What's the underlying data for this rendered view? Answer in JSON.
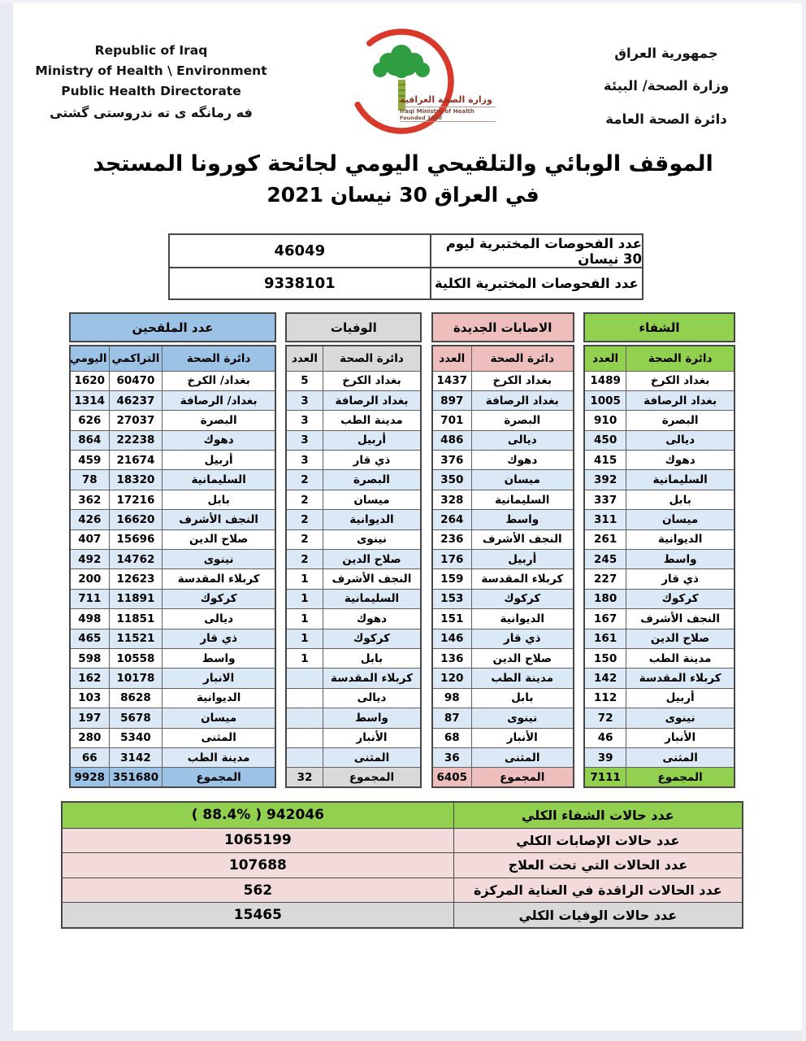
{
  "header": {
    "english_lines": [
      "Republic of Iraq",
      "Ministry of Health \\ Environment",
      "Public Health Directorate"
    ],
    "kurdish_line": "فه رمانگه ی ته ندروستی گشتی",
    "arabic_lines": [
      "جمهورية العراق",
      "وزارة الصحة/ البيئة",
      "دائرة الصحة العامة"
    ],
    "logo": {
      "arabic_name": "وزارة الصحة العراقية",
      "english_name": "Iraqi Ministry of Health",
      "founded": "Founded 1920"
    }
  },
  "title": {
    "line1": "الموقف الوبائي والتلقيحي اليومي لجائحة كورونا المستجد",
    "line2": "في العراق  30  نيسان 2021"
  },
  "tests": {
    "rows": [
      {
        "label": "عدد الفحوصات المختبرية  ليوم 30 نيسان",
        "value": "46049"
      },
      {
        "label": "عدد الفحوصات المختبرية الكلية",
        "value": "9338101"
      }
    ]
  },
  "colors": {
    "vaccinated": "#9cc3e5",
    "deaths": "#d9d9d9",
    "infections": "#eebebd",
    "recoveries": "#92d050",
    "stripe": "#dbe9f6"
  },
  "tables": {
    "vaccinated": {
      "title": "عدد الملقحين",
      "columns": {
        "daily": "اليومي",
        "cumulative": "التراكمي",
        "directorate": "دائرة الصحة"
      },
      "rows": [
        [
          "1620",
          "60470",
          "بغداد/ الكرخ"
        ],
        [
          "1314",
          "46237",
          "بغداد/ الرصافة"
        ],
        [
          "626",
          "27037",
          "البصرة"
        ],
        [
          "864",
          "22238",
          "دهوك"
        ],
        [
          "459",
          "21674",
          "أربيل"
        ],
        [
          "78",
          "18320",
          "السليمانية"
        ],
        [
          "362",
          "17216",
          "بابل"
        ],
        [
          "426",
          "16620",
          "النجف الأشرف"
        ],
        [
          "407",
          "15696",
          "صلاح الدين"
        ],
        [
          "492",
          "14762",
          "نينوى"
        ],
        [
          "200",
          "12623",
          "كربلاء المقدسة"
        ],
        [
          "711",
          "11891",
          "كركوك"
        ],
        [
          "498",
          "11851",
          "ديالى"
        ],
        [
          "465",
          "11521",
          "ذي قار"
        ],
        [
          "598",
          "10558",
          "واسط"
        ],
        [
          "162",
          "10178",
          "الانبار"
        ],
        [
          "103",
          "8628",
          "الديوانية"
        ],
        [
          "197",
          "5678",
          "ميسان"
        ],
        [
          "280",
          "5340",
          "المثنى"
        ],
        [
          "66",
          "3142",
          "مدينة الطب"
        ]
      ],
      "total": {
        "label": "المجموع",
        "cumulative": "351680",
        "daily": "9928"
      }
    },
    "deaths": {
      "title": "الوفيات",
      "columns": {
        "count": "العدد",
        "directorate": "دائرة الصحة"
      },
      "rows": [
        [
          "5",
          "بغداد الكرخ"
        ],
        [
          "3",
          "بغداد الرصافة"
        ],
        [
          "3",
          "مدينة الطب"
        ],
        [
          "3",
          "أربيل"
        ],
        [
          "3",
          "ذي قار"
        ],
        [
          "2",
          "البصرة"
        ],
        [
          "2",
          "ميسان"
        ],
        [
          "2",
          "الديوانية"
        ],
        [
          "2",
          "نينوى"
        ],
        [
          "2",
          "صلاح الدين"
        ],
        [
          "1",
          "النجف الأشرف"
        ],
        [
          "1",
          "السليمانية"
        ],
        [
          "1",
          "دهوك"
        ],
        [
          "1",
          "كركوك"
        ],
        [
          "1",
          "بابل"
        ],
        [
          "",
          "كربلاء المقدسة"
        ],
        [
          "",
          "ديالى"
        ],
        [
          "",
          "واسط"
        ],
        [
          "",
          "الأنبار"
        ],
        [
          "",
          "المثنى"
        ]
      ],
      "total": {
        "label": "المجموع",
        "count": "32"
      }
    },
    "infections": {
      "title": "الاصابات الجديدة",
      "columns": {
        "count": "العدد",
        "directorate": "دائرة الصحة"
      },
      "rows": [
        [
          "1437",
          "بغداد الكرخ"
        ],
        [
          "897",
          "بغداد الرصافة"
        ],
        [
          "701",
          "البصرة"
        ],
        [
          "486",
          "ديالى"
        ],
        [
          "376",
          "دهوك"
        ],
        [
          "350",
          "ميسان"
        ],
        [
          "328",
          "السليمانية"
        ],
        [
          "264",
          "واسط"
        ],
        [
          "236",
          "النجف الأشرف"
        ],
        [
          "176",
          "أربيل"
        ],
        [
          "159",
          "كربلاء المقدسة"
        ],
        [
          "153",
          "كركوك"
        ],
        [
          "151",
          "الديوانية"
        ],
        [
          "146",
          "ذي قار"
        ],
        [
          "136",
          "صلاح الدين"
        ],
        [
          "120",
          "مدينة الطب"
        ],
        [
          "98",
          "بابل"
        ],
        [
          "87",
          "نينوى"
        ],
        [
          "68",
          "الأنبار"
        ],
        [
          "36",
          "المثنى"
        ]
      ],
      "total": {
        "label": "المجموع",
        "count": "6405"
      }
    },
    "recoveries": {
      "title": "الشفاء",
      "columns": {
        "count": "العدد",
        "directorate": "دائرة الصحة"
      },
      "rows": [
        [
          "1489",
          "بغداد الكرخ"
        ],
        [
          "1005",
          "بغداد الرصافة"
        ],
        [
          "910",
          "البصرة"
        ],
        [
          "450",
          "ديالى"
        ],
        [
          "415",
          "دهوك"
        ],
        [
          "392",
          "السليمانية"
        ],
        [
          "337",
          "بابل"
        ],
        [
          "311",
          "ميسان"
        ],
        [
          "261",
          "الديوانية"
        ],
        [
          "245",
          "واسط"
        ],
        [
          "227",
          "ذي قار"
        ],
        [
          "180",
          "كركوك"
        ],
        [
          "167",
          "النجف الأشرف"
        ],
        [
          "161",
          "صلاح الدين"
        ],
        [
          "150",
          "مدينة الطب"
        ],
        [
          "142",
          "كربلاء المقدسة"
        ],
        [
          "112",
          "أربيل"
        ],
        [
          "72",
          "نينوى"
        ],
        [
          "46",
          "الأنبار"
        ],
        [
          "39",
          "المثنى"
        ]
      ],
      "total": {
        "label": "المجموع",
        "count": "7111"
      }
    }
  },
  "summary": {
    "rows": [
      {
        "label": "عدد حالات الشفاء الكلي",
        "value": "942046 ( 88.4% )",
        "tone": "green"
      },
      {
        "label": "عدد حالات الإصابات الكلي",
        "value": "1065199",
        "tone": "pink"
      },
      {
        "label": "عدد الحالات التي تحت العلاج",
        "value": "107688",
        "tone": "pink"
      },
      {
        "label": "عدد الحالات الراقدة في العناية المركزة",
        "value": "562",
        "tone": "pink"
      },
      {
        "label": "عدد حالات الوفيات الكلي",
        "value": "15465",
        "tone": "gray"
      }
    ]
  }
}
